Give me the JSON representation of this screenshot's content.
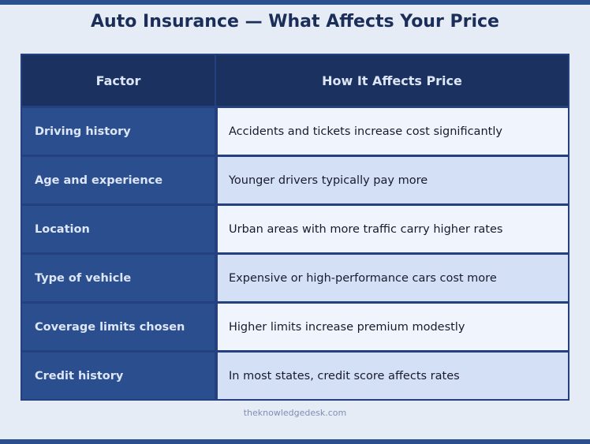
{
  "title": "Auto Insurance — What Affects Your Price",
  "table": {
    "headers": [
      "Factor",
      "How It Affects Price"
    ],
    "rows": [
      {
        "factor": "Driving history",
        "effect": "Accidents and tickets increase cost significantly"
      },
      {
        "factor": "Age and experience",
        "effect": "Younger drivers typically pay more"
      },
      {
        "factor": "Location",
        "effect": "Urban areas with more traffic carry higher rates"
      },
      {
        "factor": "Type of vehicle",
        "effect": "Expensive or high-performance cars cost more"
      },
      {
        "factor": "Coverage limits chosen",
        "effect": "Higher limits increase premium modestly"
      },
      {
        "factor": "Credit history",
        "effect": "In most states, credit score affects rates"
      }
    ]
  },
  "footer": "theknowledgedesk.com",
  "colors": {
    "accent_bar": "#2b4f8e",
    "header_bg": "#1b3260",
    "factor_bg": "#2b4f8e",
    "row_light": "#f0f4fd",
    "row_alt": "#d3e0f5",
    "title_text": "#1b2e5a"
  }
}
